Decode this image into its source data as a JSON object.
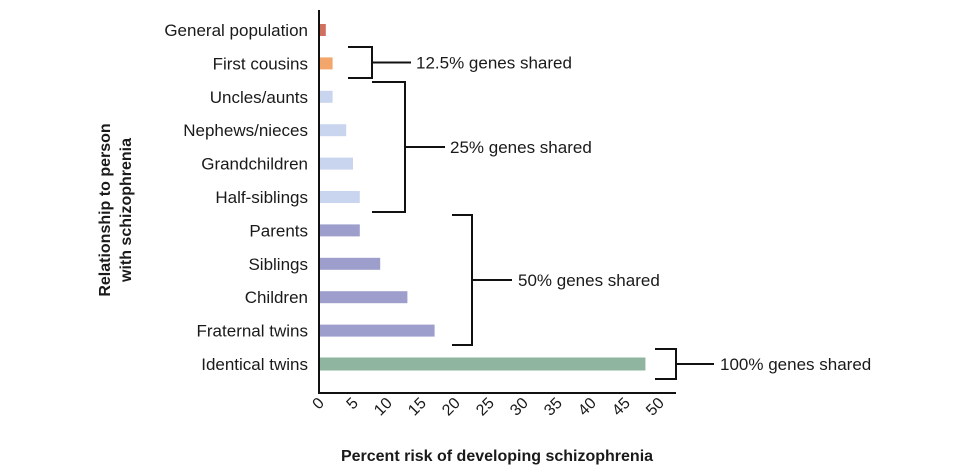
{
  "chart_data": {
    "type": "bar",
    "orientation": "horizontal",
    "title": "",
    "xlabel": "Percent risk of developing schizophrenia",
    "ylabel": [
      "Relationship to person",
      "with schizophrenia"
    ],
    "xlim": [
      0,
      50
    ],
    "xticks": [
      "0",
      "5",
      "10",
      "15",
      "20",
      "25",
      "30",
      "35",
      "40",
      "45",
      "50"
    ],
    "grid": false,
    "categories": [
      "General population",
      "First cousins",
      "Uncles/aunts",
      "Nephews/nieces",
      "Grandchildren",
      "Half-siblings",
      "Parents",
      "Siblings",
      "Children",
      "Fraternal twins",
      "Identical twins"
    ],
    "values": [
      1,
      2,
      2,
      4,
      5,
      6,
      6,
      9,
      13,
      17,
      48
    ],
    "bar_colors": [
      "#d0705e",
      "#f2a66c",
      "#c9d5ee",
      "#c9d5ee",
      "#c9d5ee",
      "#c9d5ee",
      "#9d9ecb",
      "#9d9ecb",
      "#9d9ecb",
      "#9d9ecb",
      "#8fb5a0"
    ],
    "annotations": [
      {
        "label": "12.5% genes shared",
        "from": "First cousins",
        "to": "First cousins"
      },
      {
        "label": "25% genes shared",
        "from": "Uncles/aunts",
        "to": "Half-siblings"
      },
      {
        "label": "50% genes shared",
        "from": "Parents",
        "to": "Fraternal twins"
      },
      {
        "label": "100% genes shared",
        "from": "Identical twins",
        "to": "Identical twins"
      }
    ]
  }
}
